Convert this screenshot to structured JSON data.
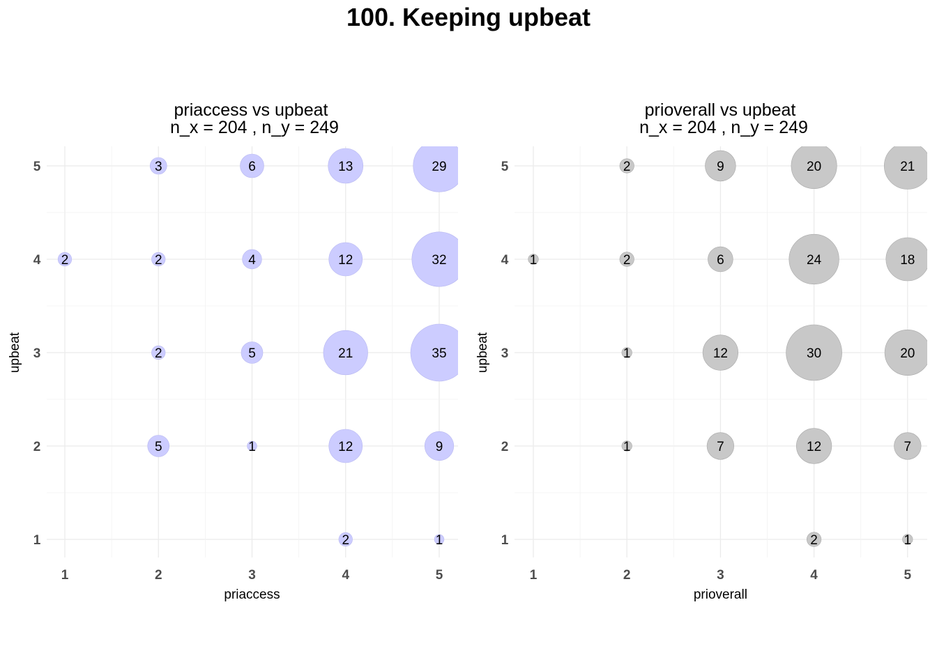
{
  "title": "100. Keeping upbeat",
  "chart_data": [
    {
      "type": "scatter",
      "title": "priaccess vs upbeat",
      "subtitle": "n_x = 204 , n_y = 249",
      "xlabel": "priaccess",
      "ylabel": "upbeat",
      "x_ticks": [
        "1",
        "2",
        "3",
        "4",
        "5"
      ],
      "y_ticks": [
        "1",
        "2",
        "3",
        "4",
        "5"
      ],
      "xlim": [
        0.8,
        5.2
      ],
      "ylim": [
        0.8,
        5.2
      ],
      "grid": true,
      "color": "#ccccff",
      "points": [
        {
          "x": 2,
          "y": 5,
          "n": 3
        },
        {
          "x": 3,
          "y": 5,
          "n": 6
        },
        {
          "x": 4,
          "y": 5,
          "n": 13
        },
        {
          "x": 5,
          "y": 5,
          "n": 29
        },
        {
          "x": 1,
          "y": 4,
          "n": 2
        },
        {
          "x": 2,
          "y": 4,
          "n": 2
        },
        {
          "x": 3,
          "y": 4,
          "n": 4
        },
        {
          "x": 4,
          "y": 4,
          "n": 12
        },
        {
          "x": 5,
          "y": 4,
          "n": 32
        },
        {
          "x": 2,
          "y": 3,
          "n": 2
        },
        {
          "x": 3,
          "y": 3,
          "n": 5
        },
        {
          "x": 4,
          "y": 3,
          "n": 21
        },
        {
          "x": 5,
          "y": 3,
          "n": 35
        },
        {
          "x": 2,
          "y": 2,
          "n": 5
        },
        {
          "x": 3,
          "y": 2,
          "n": 1
        },
        {
          "x": 4,
          "y": 2,
          "n": 12
        },
        {
          "x": 5,
          "y": 2,
          "n": 9
        },
        {
          "x": 4,
          "y": 1,
          "n": 2
        },
        {
          "x": 5,
          "y": 1,
          "n": 1
        }
      ]
    },
    {
      "type": "scatter",
      "title": "prioverall vs upbeat",
      "subtitle": "n_x = 204 , n_y = 249",
      "xlabel": "prioverall",
      "ylabel": "upbeat",
      "x_ticks": [
        "1",
        "2",
        "3",
        "4",
        "5"
      ],
      "y_ticks": [
        "1",
        "2",
        "3",
        "4",
        "5"
      ],
      "xlim": [
        0.8,
        5.2
      ],
      "ylim": [
        0.8,
        5.2
      ],
      "grid": true,
      "color": "#c8c8c8",
      "points": [
        {
          "x": 2,
          "y": 5,
          "n": 2
        },
        {
          "x": 3,
          "y": 5,
          "n": 9
        },
        {
          "x": 4,
          "y": 5,
          "n": 20
        },
        {
          "x": 5,
          "y": 5,
          "n": 21
        },
        {
          "x": 1,
          "y": 4,
          "n": 1
        },
        {
          "x": 2,
          "y": 4,
          "n": 2
        },
        {
          "x": 3,
          "y": 4,
          "n": 6
        },
        {
          "x": 4,
          "y": 4,
          "n": 24
        },
        {
          "x": 5,
          "y": 4,
          "n": 18
        },
        {
          "x": 2,
          "y": 3,
          "n": 1
        },
        {
          "x": 3,
          "y": 3,
          "n": 12
        },
        {
          "x": 4,
          "y": 3,
          "n": 30
        },
        {
          "x": 5,
          "y": 3,
          "n": 20
        },
        {
          "x": 2,
          "y": 2,
          "n": 1
        },
        {
          "x": 3,
          "y": 2,
          "n": 7
        },
        {
          "x": 4,
          "y": 2,
          "n": 12
        },
        {
          "x": 5,
          "y": 2,
          "n": 7
        },
        {
          "x": 4,
          "y": 1,
          "n": 2
        },
        {
          "x": 5,
          "y": 1,
          "n": 1
        }
      ]
    }
  ]
}
